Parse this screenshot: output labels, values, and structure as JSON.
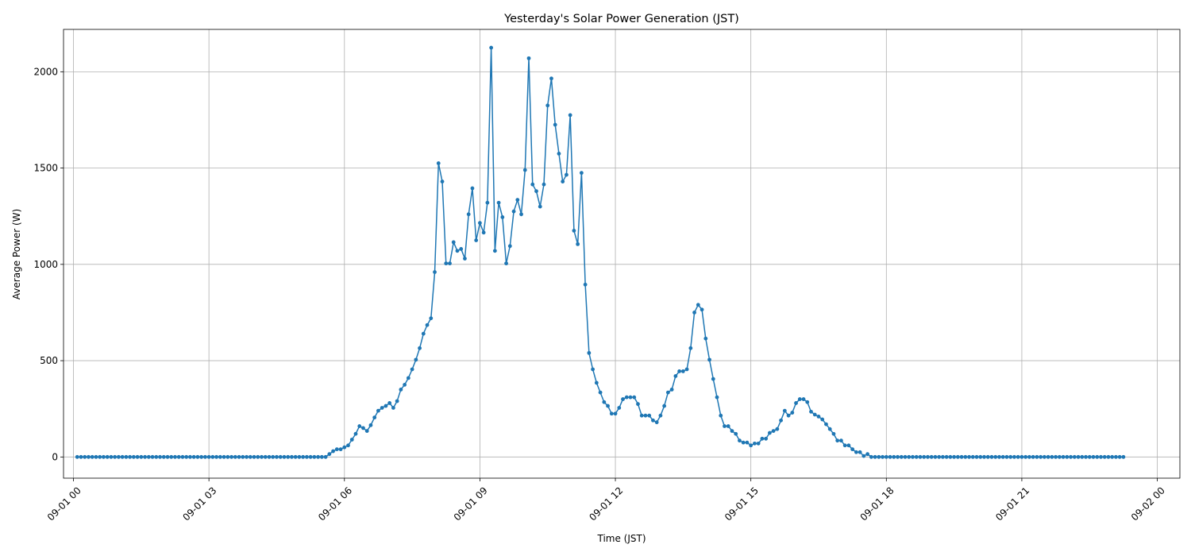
{
  "chart_data": {
    "type": "line",
    "title": "Yesterday's Solar Power Generation (JST)",
    "xlabel": "Time (JST)",
    "ylabel": "Average Power (W)",
    "x_start": "09-01 00:05",
    "x_step_minutes": 5,
    "xlim": [
      -0.22,
      24.5
    ],
    "ylim": [
      -110,
      2220
    ],
    "grid": true,
    "x_ticks": [
      {
        "hour": 0,
        "label": "09-01 00"
      },
      {
        "hour": 3,
        "label": "09-01 03"
      },
      {
        "hour": 6,
        "label": "09-01 06"
      },
      {
        "hour": 9,
        "label": "09-01 09"
      },
      {
        "hour": 12,
        "label": "09-01 12"
      },
      {
        "hour": 15,
        "label": "09-01 15"
      },
      {
        "hour": 18,
        "label": "09-01 18"
      },
      {
        "hour": 21,
        "label": "09-01 21"
      },
      {
        "hour": 24,
        "label": "09-02 00"
      }
    ],
    "y_ticks": [
      {
        "value": 0,
        "label": "0"
      },
      {
        "value": 500,
        "label": "500"
      },
      {
        "value": 1000,
        "label": "1000"
      },
      {
        "value": 1500,
        "label": "1500"
      },
      {
        "value": 2000,
        "label": "2000"
      }
    ],
    "series": [
      {
        "color": "#1f77b4",
        "values": [
          0,
          0,
          0,
          0,
          0,
          0,
          0,
          0,
          0,
          0,
          0,
          0,
          0,
          0,
          0,
          0,
          0,
          0,
          0,
          0,
          0,
          0,
          0,
          0,
          0,
          0,
          0,
          0,
          0,
          0,
          0,
          0,
          0,
          0,
          0,
          0,
          0,
          0,
          0,
          0,
          0,
          0,
          0,
          0,
          0,
          0,
          0,
          0,
          0,
          0,
          0,
          0,
          0,
          0,
          0,
          0,
          0,
          0,
          0,
          0,
          0,
          0,
          0,
          0,
          0,
          0,
          0,
          15,
          30,
          40,
          40,
          50,
          60,
          90,
          120,
          160,
          150,
          135,
          165,
          205,
          240,
          255,
          265,
          280,
          255,
          290,
          350,
          375,
          410,
          455,
          505,
          565,
          640,
          685,
          720,
          960,
          1525,
          1430,
          1005,
          1005,
          1115,
          1070,
          1080,
          1030,
          1260,
          1395,
          1125,
          1215,
          1165,
          1320,
          2125,
          1070,
          1320,
          1245,
          1005,
          1095,
          1275,
          1335,
          1260,
          1490,
          2070,
          1415,
          1380,
          1300,
          1415,
          1825,
          1965,
          1725,
          1575,
          1430,
          1465,
          1775,
          1175,
          1105,
          1475,
          895,
          540,
          455,
          385,
          335,
          285,
          265,
          225,
          225,
          255,
          300,
          310,
          310,
          310,
          275,
          215,
          215,
          215,
          190,
          180,
          215,
          265,
          335,
          350,
          420,
          445,
          445,
          455,
          565,
          750,
          790,
          765,
          615,
          505,
          405,
          310,
          215,
          160,
          160,
          135,
          120,
          85,
          75,
          75,
          60,
          70,
          70,
          95,
          95,
          125,
          135,
          145,
          190,
          240,
          215,
          230,
          280,
          300,
          300,
          285,
          235,
          220,
          210,
          195,
          170,
          145,
          120,
          85,
          85,
          60,
          60,
          40,
          25,
          25,
          5,
          15,
          0,
          0,
          0,
          0,
          0,
          0,
          0,
          0,
          0,
          0,
          0,
          0,
          0,
          0,
          0,
          0,
          0,
          0,
          0,
          0,
          0,
          0,
          0,
          0,
          0,
          0,
          0,
          0,
          0,
          0,
          0,
          0,
          0,
          0,
          0,
          0,
          0,
          0,
          0,
          0,
          0,
          0,
          0,
          0,
          0,
          0,
          0,
          0,
          0,
          0,
          0,
          0,
          0,
          0,
          0,
          0,
          0,
          0,
          0,
          0,
          0,
          0,
          0,
          0,
          0,
          0,
          0,
          0
        ]
      }
    ]
  }
}
